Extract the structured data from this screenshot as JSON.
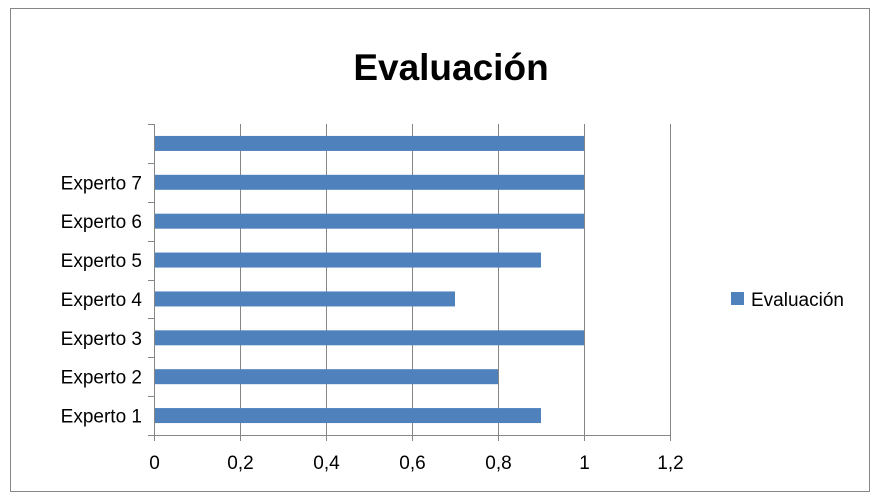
{
  "chart_data": {
    "type": "bar",
    "orientation": "horizontal",
    "title": "Evaluación",
    "categories": [
      "Experto 1",
      "Experto 2",
      "Experto 3",
      "Experto 4",
      "Experto 5",
      "Experto 6",
      "Experto 7",
      ""
    ],
    "series": [
      {
        "name": "Evaluación",
        "values": [
          0.9,
          0.8,
          1.0,
          0.7,
          0.9,
          1.0,
          1.0,
          1.0
        ]
      }
    ],
    "x_ticks": [
      "0",
      "0,2",
      "0,4",
      "0,6",
      "0,8",
      "1",
      "1,2"
    ],
    "xlim": [
      0,
      1.2
    ],
    "grid": "vertical major gridlines",
    "legend_position": "right",
    "colors": {
      "bar": "#4f81bd",
      "grid": "#868686",
      "axis": "#868686"
    }
  }
}
